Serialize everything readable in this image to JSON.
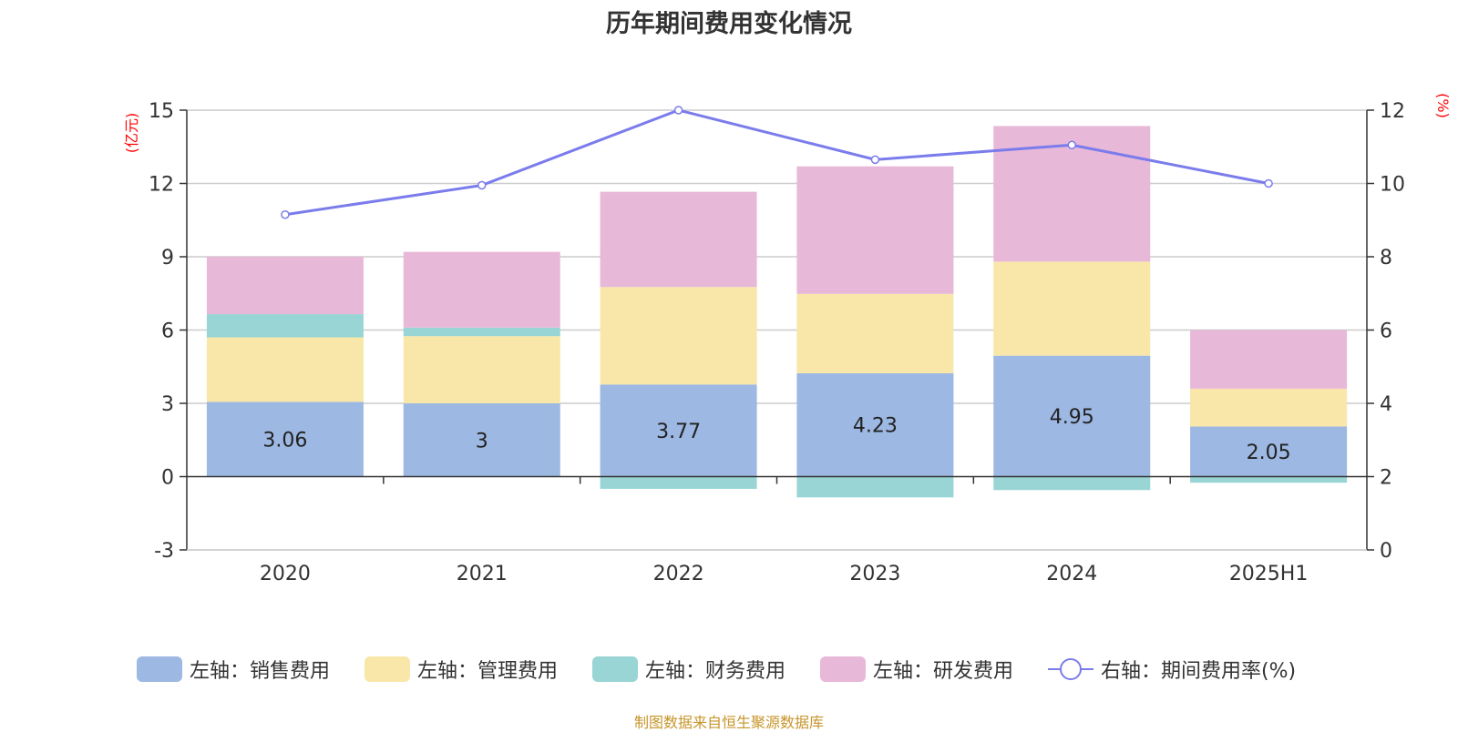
{
  "title": "历年期间费用变化情况",
  "source_note": "制图数据来自恒生聚源数据库",
  "chart_data": {
    "type": "bar",
    "stacked": true,
    "categories": [
      "2020",
      "2021",
      "2022",
      "2023",
      "2024",
      "2025H1"
    ],
    "left_axis": {
      "unit": "(亿元)",
      "min": -3,
      "max": 15,
      "ticks": [
        -3,
        0,
        3,
        6,
        9,
        12,
        15
      ]
    },
    "right_axis": {
      "unit": "(%)",
      "min": 0,
      "max": 12,
      "ticks": [
        0,
        2,
        4,
        6,
        8,
        10,
        12
      ]
    },
    "series": [
      {
        "name": "左轴：销售费用",
        "axis": "left",
        "color": "#9db8e2",
        "values": [
          3.06,
          3,
          3.77,
          4.23,
          4.95,
          2.05
        ],
        "labels": [
          "3.06",
          "3",
          "3.77",
          "4.23",
          "4.95",
          "2.05"
        ]
      },
      {
        "name": "左轴：管理费用",
        "axis": "left",
        "color": "#f8e7a8",
        "values": [
          2.64,
          2.75,
          3.99,
          3.25,
          3.85,
          1.55
        ]
      },
      {
        "name": "左轴：财务费用",
        "axis": "left",
        "color": "#98d5d4",
        "values": [
          0.95,
          0.35,
          -0.5,
          -0.85,
          -0.55,
          -0.25
        ]
      },
      {
        "name": "左轴：研发费用",
        "axis": "left",
        "color": "#e8b8d8",
        "values": [
          2.35,
          3.1,
          3.9,
          5.22,
          5.55,
          2.4
        ]
      },
      {
        "name": "右轴：期间费用率(%)",
        "axis": "right",
        "type": "line",
        "color": "#7b7cec",
        "values": [
          9.15,
          9.95,
          12.0,
          10.65,
          11.05,
          10.0
        ]
      }
    ],
    "grid": true,
    "legend_position": "bottom"
  }
}
